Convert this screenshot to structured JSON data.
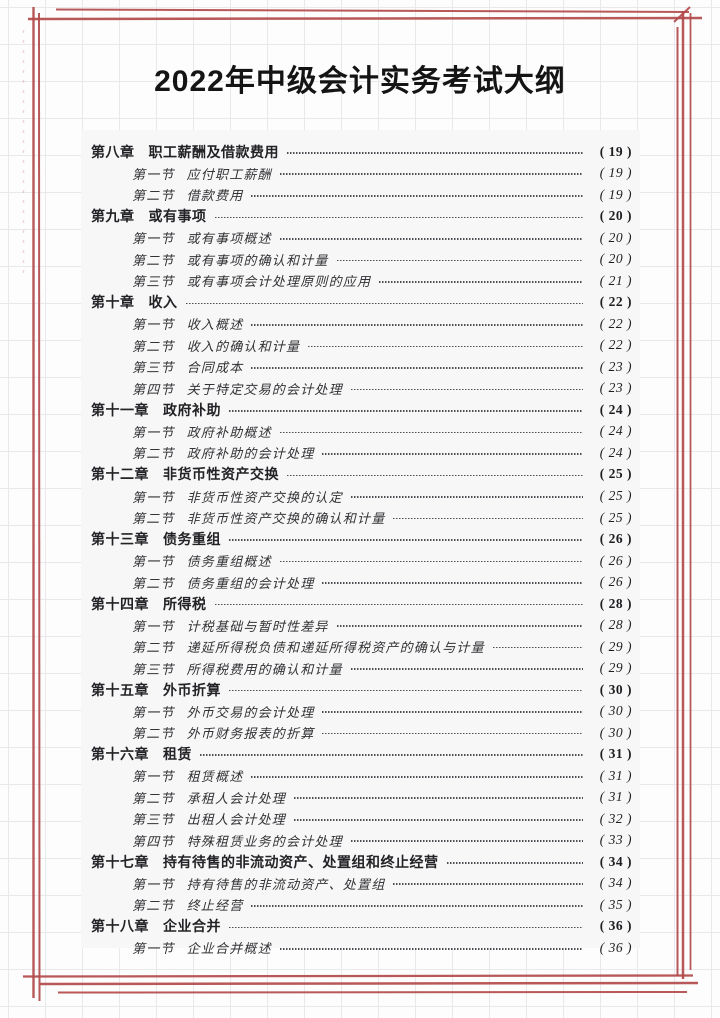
{
  "page": {
    "title": "2022年中级会计实务考试大纲"
  },
  "colors": {
    "frame_red": "#b24a4b",
    "panel_bg": "#f7f7f7",
    "grid_line": "#e9e9ec",
    "chapter_text": "#232327",
    "section_text": "#333337"
  },
  "toc": {
    "items": [
      {
        "level": "chapter",
        "num": "第八章",
        "title": "职工薪酬及借款费用",
        "page": "( 19 )"
      },
      {
        "level": "section",
        "num": "第一节",
        "title": "应付职工薪酬",
        "page": "( 19 )"
      },
      {
        "level": "section",
        "num": "第二节",
        "title": "借款费用",
        "page": "( 19 )"
      },
      {
        "level": "chapter",
        "num": "第九章",
        "title": "或有事项",
        "page": "( 20 )"
      },
      {
        "level": "section",
        "num": "第一节",
        "title": "或有事项概述",
        "page": "( 20 )"
      },
      {
        "level": "section",
        "num": "第二节",
        "title": "或有事项的确认和计量",
        "page": "( 20 )"
      },
      {
        "level": "section",
        "num": "第三节",
        "title": "或有事项会计处理原则的应用",
        "page": "( 21 )"
      },
      {
        "level": "chapter",
        "num": "第十章",
        "title": "收入",
        "page": "( 22 )"
      },
      {
        "level": "section",
        "num": "第一节",
        "title": "收入概述",
        "page": "( 22 )"
      },
      {
        "level": "section",
        "num": "第二节",
        "title": "收入的确认和计量",
        "page": "( 22 )"
      },
      {
        "level": "section",
        "num": "第三节",
        "title": "合同成本",
        "page": "( 23 )"
      },
      {
        "level": "section",
        "num": "第四节",
        "title": "关于特定交易的会计处理",
        "page": "( 23 )"
      },
      {
        "level": "chapter",
        "num": "第十一章",
        "title": "政府补助",
        "page": "( 24 )"
      },
      {
        "level": "section",
        "num": "第一节",
        "title": "政府补助概述",
        "page": "( 24 )"
      },
      {
        "level": "section",
        "num": "第二节",
        "title": "政府补助的会计处理",
        "page": "( 24 )"
      },
      {
        "level": "chapter",
        "num": "第十二章",
        "title": "非货币性资产交换",
        "page": "( 25 )"
      },
      {
        "level": "section",
        "num": "第一节",
        "title": "非货币性资产交换的认定",
        "page": "( 25 )"
      },
      {
        "level": "section",
        "num": "第二节",
        "title": "非货币性资产交换的确认和计量",
        "page": "( 25 )"
      },
      {
        "level": "chapter",
        "num": "第十三章",
        "title": "债务重组",
        "page": "( 26 )"
      },
      {
        "level": "section",
        "num": "第一节",
        "title": "债务重组概述",
        "page": "( 26 )"
      },
      {
        "level": "section",
        "num": "第二节",
        "title": "债务重组的会计处理",
        "page": "( 26 )"
      },
      {
        "level": "chapter",
        "num": "第十四章",
        "title": "所得税",
        "page": "( 28 )"
      },
      {
        "level": "section",
        "num": "第一节",
        "title": "计税基础与暂时性差异",
        "page": "( 28 )"
      },
      {
        "level": "section",
        "num": "第二节",
        "title": "递延所得税负债和递延所得税资产的确认与计量",
        "page": "( 29 )"
      },
      {
        "level": "section",
        "num": "第三节",
        "title": "所得税费用的确认和计量",
        "page": "( 29 )"
      },
      {
        "level": "chapter",
        "num": "第十五章",
        "title": "外币折算",
        "page": "( 30 )"
      },
      {
        "level": "section",
        "num": "第一节",
        "title": "外币交易的会计处理",
        "page": "( 30 )"
      },
      {
        "level": "section",
        "num": "第二节",
        "title": "外币财务报表的折算",
        "page": "( 30 )"
      },
      {
        "level": "chapter",
        "num": "第十六章",
        "title": "租赁",
        "page": "( 31 )"
      },
      {
        "level": "section",
        "num": "第一节",
        "title": "租赁概述",
        "page": "( 31 )"
      },
      {
        "level": "section",
        "num": "第二节",
        "title": "承租人会计处理",
        "page": "( 31 )"
      },
      {
        "level": "section",
        "num": "第三节",
        "title": "出租人会计处理",
        "page": "( 32 )"
      },
      {
        "level": "section",
        "num": "第四节",
        "title": "特殊租赁业务的会计处理",
        "page": "( 33 )"
      },
      {
        "level": "chapter",
        "num": "第十七章",
        "title": "持有待售的非流动资产、处置组和终止经营",
        "page": "( 34 )"
      },
      {
        "level": "section",
        "num": "第一节",
        "title": "持有待售的非流动资产、处置组",
        "page": "( 34 )"
      },
      {
        "level": "section",
        "num": "第二节",
        "title": "终止经营",
        "page": "( 35 )"
      },
      {
        "level": "chapter",
        "num": "第十八章",
        "title": "企业合并",
        "page": "( 36 )"
      },
      {
        "level": "section",
        "num": "第一节",
        "title": "企业合并概述",
        "page": "( 36 )"
      }
    ]
  }
}
